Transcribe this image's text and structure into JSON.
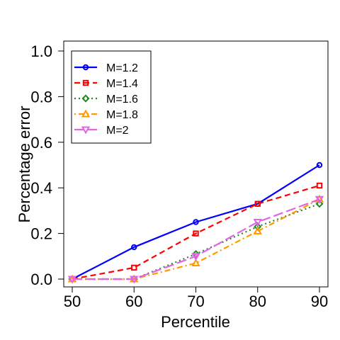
{
  "chart_data": {
    "type": "line",
    "xlabel": "Percentile",
    "ylabel": "Percentage error",
    "x": [
      50,
      60,
      70,
      80,
      90
    ],
    "xticks": [
      "50",
      "60",
      "70",
      "80",
      "90"
    ],
    "yticks": [
      "0.0",
      "0.2",
      "0.4",
      "0.6",
      "0.8",
      "1.0"
    ],
    "xlim": [
      50,
      90
    ],
    "ylim": [
      0,
      1
    ],
    "grid": false,
    "legend_position": "top-left",
    "series": [
      {
        "name": "M=1.2",
        "color": "#0000ff",
        "dash": "solid",
        "marker": "circle",
        "values": [
          0.0,
          0.14,
          0.25,
          0.33,
          0.5
        ]
      },
      {
        "name": "M=1.4",
        "color": "#ff0000",
        "dash": "dashed",
        "marker": "square",
        "values": [
          0.0,
          0.05,
          0.2,
          0.33,
          0.41
        ]
      },
      {
        "name": "M=1.6",
        "color": "#228b22",
        "dash": "dotted",
        "marker": "diamond",
        "values": [
          0.0,
          0.0,
          0.11,
          0.23,
          0.33
        ]
      },
      {
        "name": "M=1.8",
        "color": "#ff9900",
        "dash": "dotdash",
        "marker": "triangle-up",
        "values": [
          0.0,
          0.0,
          0.07,
          0.21,
          0.35
        ]
      },
      {
        "name": "M=2",
        "color": "#e066e6",
        "dash": "longdash",
        "marker": "triangle-down",
        "values": [
          0.0,
          0.0,
          0.1,
          0.25,
          0.35
        ]
      }
    ]
  }
}
